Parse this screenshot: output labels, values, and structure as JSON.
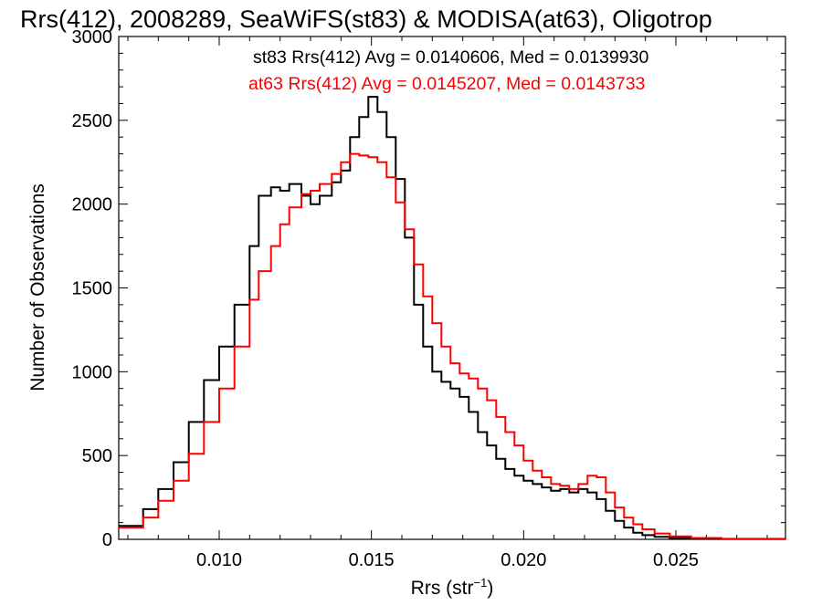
{
  "chart_data": {
    "type": "line",
    "step": true,
    "title": "Rrs(412), 2008289, SeaWiFS(st83) & MODISA(at63), Oligotrop",
    "xlabel_main": "Rrs (str",
    "xlabel_sup": "−1",
    "xlabel_close": ")",
    "ylabel": "Number of Observations",
    "xlim": [
      0.0067,
      0.0286
    ],
    "ylim": [
      0,
      3000
    ],
    "xticks": [
      0.01,
      0.015,
      0.02,
      0.025
    ],
    "xtick_labels": [
      "0.010",
      "0.015",
      "0.020",
      "0.025"
    ],
    "yticks": [
      0,
      500,
      1000,
      1500,
      2000,
      2500,
      3000
    ],
    "ytick_labels": [
      "0",
      "500",
      "1000",
      "1500",
      "2000",
      "2500",
      "3000"
    ],
    "legend": [
      {
        "text": "st83 Rrs(412) Avg = 0.0140606, Med = 0.0139930",
        "color": "#000000"
      },
      {
        "text": "at63 Rrs(412) Avg = 0.0145207, Med = 0.0143733",
        "color": "#ff0000"
      }
    ],
    "series": [
      {
        "color": "#000000",
        "points": [
          [
            0.0067,
            80
          ],
          [
            0.0075,
            180
          ],
          [
            0.008,
            300
          ],
          [
            0.0085,
            460
          ],
          [
            0.009,
            700
          ],
          [
            0.0095,
            950
          ],
          [
            0.01,
            1150
          ],
          [
            0.0105,
            1400
          ],
          [
            0.011,
            1750
          ],
          [
            0.0113,
            2050
          ],
          [
            0.0117,
            2100
          ],
          [
            0.012,
            2080
          ],
          [
            0.0123,
            2120
          ],
          [
            0.0127,
            2050
          ],
          [
            0.013,
            2000
          ],
          [
            0.0133,
            2050
          ],
          [
            0.0137,
            2130
          ],
          [
            0.014,
            2200
          ],
          [
            0.0143,
            2400
          ],
          [
            0.0146,
            2520
          ],
          [
            0.0149,
            2640
          ],
          [
            0.0152,
            2550
          ],
          [
            0.0155,
            2400
          ],
          [
            0.0158,
            2150
          ],
          [
            0.0161,
            1800
          ],
          [
            0.0164,
            1400
          ],
          [
            0.0167,
            1150
          ],
          [
            0.017,
            1000
          ],
          [
            0.0173,
            940
          ],
          [
            0.0176,
            900
          ],
          [
            0.0179,
            850
          ],
          [
            0.0182,
            760
          ],
          [
            0.0185,
            640
          ],
          [
            0.0188,
            560
          ],
          [
            0.0191,
            480
          ],
          [
            0.0194,
            420
          ],
          [
            0.0197,
            380
          ],
          [
            0.02,
            350
          ],
          [
            0.0203,
            330
          ],
          [
            0.0206,
            310
          ],
          [
            0.0209,
            290
          ],
          [
            0.0212,
            300
          ],
          [
            0.0215,
            280
          ],
          [
            0.0218,
            300
          ],
          [
            0.0221,
            280
          ],
          [
            0.0224,
            240
          ],
          [
            0.0227,
            170
          ],
          [
            0.023,
            110
          ],
          [
            0.0233,
            70
          ],
          [
            0.0236,
            40
          ],
          [
            0.0239,
            25
          ],
          [
            0.0243,
            15
          ],
          [
            0.0248,
            8
          ],
          [
            0.0255,
            4
          ],
          [
            0.0265,
            2
          ],
          [
            0.0286,
            1
          ]
        ]
      },
      {
        "color": "#ff0000",
        "points": [
          [
            0.0067,
            70
          ],
          [
            0.0075,
            130
          ],
          [
            0.008,
            230
          ],
          [
            0.0085,
            350
          ],
          [
            0.009,
            510
          ],
          [
            0.0095,
            700
          ],
          [
            0.01,
            900
          ],
          [
            0.0105,
            1150
          ],
          [
            0.011,
            1430
          ],
          [
            0.0113,
            1600
          ],
          [
            0.0117,
            1750
          ],
          [
            0.012,
            1880
          ],
          [
            0.0123,
            1980
          ],
          [
            0.0127,
            2060
          ],
          [
            0.013,
            2080
          ],
          [
            0.0133,
            2120
          ],
          [
            0.0137,
            2180
          ],
          [
            0.014,
            2250
          ],
          [
            0.0143,
            2300
          ],
          [
            0.0146,
            2290
          ],
          [
            0.0149,
            2280
          ],
          [
            0.0152,
            2250
          ],
          [
            0.0155,
            2160
          ],
          [
            0.0158,
            2010
          ],
          [
            0.0161,
            1850
          ],
          [
            0.0164,
            1640
          ],
          [
            0.0167,
            1450
          ],
          [
            0.017,
            1290
          ],
          [
            0.0173,
            1150
          ],
          [
            0.0176,
            1050
          ],
          [
            0.0179,
            990
          ],
          [
            0.0182,
            960
          ],
          [
            0.0185,
            900
          ],
          [
            0.0188,
            830
          ],
          [
            0.0191,
            730
          ],
          [
            0.0194,
            640
          ],
          [
            0.0197,
            560
          ],
          [
            0.02,
            470
          ],
          [
            0.0203,
            410
          ],
          [
            0.0206,
            370
          ],
          [
            0.0209,
            330
          ],
          [
            0.0212,
            320
          ],
          [
            0.0215,
            300
          ],
          [
            0.0218,
            330
          ],
          [
            0.0221,
            380
          ],
          [
            0.0224,
            370
          ],
          [
            0.0227,
            280
          ],
          [
            0.023,
            190
          ],
          [
            0.0233,
            130
          ],
          [
            0.0236,
            90
          ],
          [
            0.0239,
            60
          ],
          [
            0.0243,
            35
          ],
          [
            0.0248,
            18
          ],
          [
            0.0255,
            8
          ],
          [
            0.0265,
            3
          ],
          [
            0.0286,
            1
          ]
        ]
      }
    ]
  }
}
